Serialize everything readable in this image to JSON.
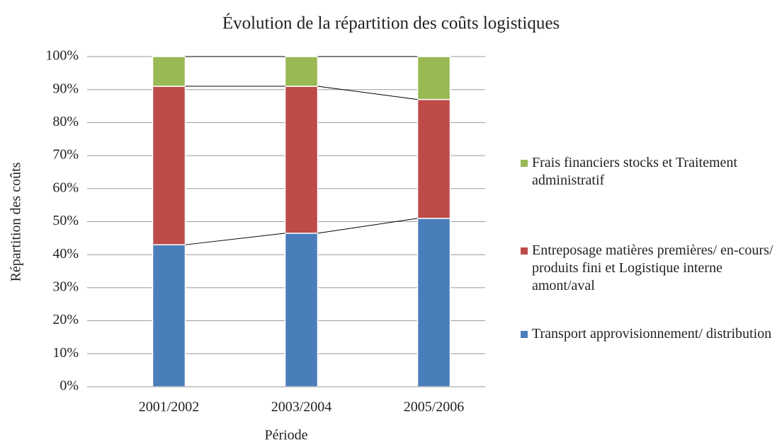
{
  "chart_data": {
    "type": "stacked_bar",
    "title": "Évolution de la répartition des coûts logistiques",
    "x_label": "Période",
    "y_label": "Répartition des coûts",
    "categories": [
      "2001/2002",
      "2003/2004",
      "2005/2006"
    ],
    "series": [
      {
        "name": "Transport approvisionnement/ distribution",
        "color": "#4a7ebb",
        "values": [
          43,
          46.5,
          51
        ]
      },
      {
        "name": "Entreposage matières premières/ en-cours/ produits fini et Logistique interne amont/aval",
        "color": "#be4b48",
        "values": [
          48,
          44.5,
          36
        ]
      },
      {
        "name": "Frais financiers stocks et Traitement administratif",
        "color": "#98b954",
        "values": [
          9,
          9,
          13
        ]
      }
    ],
    "ylim": [
      0,
      100
    ],
    "yticks": [
      {
        "value": 0,
        "label": "0%"
      },
      {
        "value": 10,
        "label": "10%"
      },
      {
        "value": 20,
        "label": "20%"
      },
      {
        "value": 30,
        "label": "30%"
      },
      {
        "value": 40,
        "label": "40%"
      },
      {
        "value": 50,
        "label": "50%"
      },
      {
        "value": 60,
        "label": "60%"
      },
      {
        "value": 70,
        "label": "70%"
      },
      {
        "value": 80,
        "label": "80%"
      },
      {
        "value": 90,
        "label": "90%"
      },
      {
        "value": 100,
        "label": "100%"
      }
    ],
    "grid": true,
    "legend": "right"
  }
}
